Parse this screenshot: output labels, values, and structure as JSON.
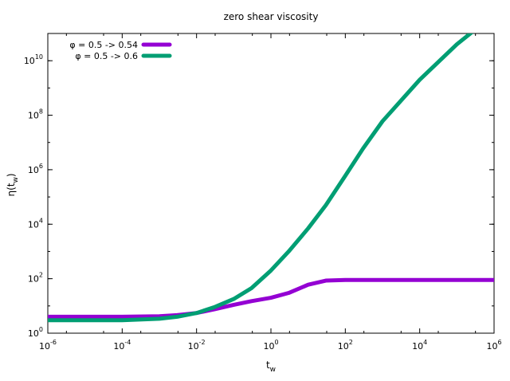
{
  "chart_data": {
    "type": "line",
    "title": "zero shear viscosity",
    "xlabel": {
      "base": "t",
      "sub": "w"
    },
    "ylabel": {
      "base": "η(t",
      "sub": "w",
      "end": ")"
    },
    "x_scale": "log",
    "y_scale": "log",
    "xlim": [
      1e-06,
      1000000.0
    ],
    "ylim": [
      1,
      100000000000.0
    ],
    "x_ticks": [
      {
        "value": 1e-06,
        "base": "10",
        "exp": "-6"
      },
      {
        "value": 0.0001,
        "base": "10",
        "exp": "-4"
      },
      {
        "value": 0.01,
        "base": "10",
        "exp": "-2"
      },
      {
        "value": 1,
        "base": "10",
        "exp": "0"
      },
      {
        "value": 100.0,
        "base": "10",
        "exp": "2"
      },
      {
        "value": 10000.0,
        "base": "10",
        "exp": "4"
      },
      {
        "value": 1000000.0,
        "base": "10",
        "exp": "6"
      }
    ],
    "y_ticks": [
      {
        "value": 1,
        "base": "10",
        "exp": "0"
      },
      {
        "value": 100.0,
        "base": "10",
        "exp": "2"
      },
      {
        "value": 10000.0,
        "base": "10",
        "exp": "4"
      },
      {
        "value": 1000000.0,
        "base": "10",
        "exp": "6"
      },
      {
        "value": 100000000.0,
        "base": "10",
        "exp": "8"
      },
      {
        "value": 10000000000.0,
        "base": "10",
        "exp": "10"
      }
    ],
    "grid": false,
    "legend_position": "top-left",
    "series": [
      {
        "name": "φ = 0.5 -> 0.54",
        "color": "#9400d3",
        "x": [
          1e-06,
          1e-05,
          0.0001,
          0.001,
          0.003,
          0.01,
          0.03,
          0.1,
          0.3,
          1,
          3,
          10,
          30,
          100,
          1000.0,
          10000.0,
          100000.0,
          1000000.0
        ],
        "y": [
          4,
          4,
          4,
          4.2,
          4.6,
          5.5,
          7.5,
          11,
          15,
          20,
          30,
          60,
          85,
          90,
          90,
          90,
          90,
          90
        ]
      },
      {
        "name": "φ = 0.5 -> 0.6",
        "color": "#009e73",
        "x": [
          1e-06,
          1e-05,
          0.0001,
          0.001,
          0.003,
          0.01,
          0.03,
          0.1,
          0.3,
          1,
          3,
          10,
          30,
          100,
          300,
          1000.0,
          10000.0,
          100000.0,
          1000000.0
        ],
        "y": [
          3,
          3,
          3,
          3.4,
          4,
          5.5,
          9,
          18,
          45,
          200,
          1000,
          7000,
          50000,
          600000,
          6000000,
          60000000,
          2000000000.0,
          40000000000.0,
          500000000000.0
        ]
      }
    ]
  }
}
